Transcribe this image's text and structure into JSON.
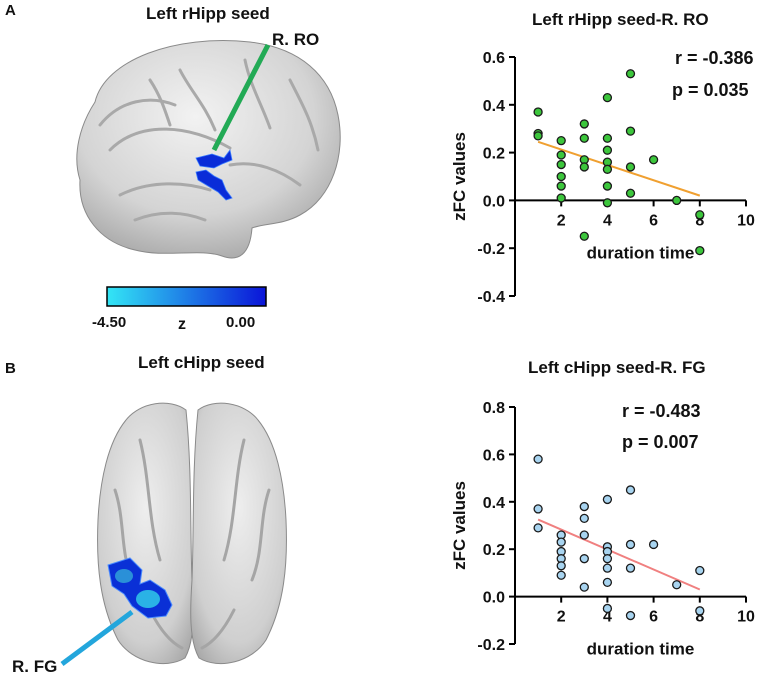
{
  "panels": [
    {
      "label": "A",
      "brain": {
        "title": "Left rHipp seed",
        "region_label": "R. RO",
        "leader_color": "#22aa55"
      },
      "colorbar": {
        "min_label": "-4.50",
        "max_label": "0.00",
        "label": "z",
        "color_low": "#33e6f5",
        "color_high": "#0a14d8"
      },
      "chart": {
        "title": "Left rHipp seed-R. RO",
        "r_text": "r = -0.386",
        "p_text": "p = 0.035"
      }
    },
    {
      "label": "B",
      "brain": {
        "title": "Left cHipp seed",
        "region_label": "R. FG",
        "leader_color": "#23a6dc"
      },
      "chart": {
        "title": "Left cHipp seed-R. FG",
        "r_text": "r = -0.483",
        "p_text": "p = 0.007"
      }
    }
  ],
  "chart_data": [
    {
      "type": "scatter",
      "title": "Left rHipp seed-R. RO",
      "xlabel": "duration time",
      "ylabel": "zFC values",
      "xlim": [
        0,
        10
      ],
      "ylim": [
        -0.4,
        0.6
      ],
      "xticks": [
        2,
        4,
        6,
        8,
        10
      ],
      "xtick_labels": [
        "2",
        "4",
        "6",
        "8",
        "10"
      ],
      "yticks": [
        -0.4,
        -0.2,
        0.0,
        0.2,
        0.4,
        0.6
      ],
      "ytick_labels": [
        "-0.4",
        "-0.2",
        "0.0",
        "0.2",
        "0.4",
        "0.6"
      ],
      "point_color": "#3cc63c",
      "line_color": "#f0a030",
      "fit_line": {
        "x": [
          1,
          8
        ],
        "y": [
          0.245,
          0.02
        ]
      },
      "points": [
        [
          1,
          0.37
        ],
        [
          1,
          0.28
        ],
        [
          1,
          0.27
        ],
        [
          2,
          0.25
        ],
        [
          2,
          0.19
        ],
        [
          2,
          0.15
        ],
        [
          2,
          0.1
        ],
        [
          2,
          0.06
        ],
        [
          2,
          0.01
        ],
        [
          3,
          0.32
        ],
        [
          3,
          0.26
        ],
        [
          3,
          0.17
        ],
        [
          3,
          0.14
        ],
        [
          3,
          -0.15
        ],
        [
          4,
          0.43
        ],
        [
          4,
          0.26
        ],
        [
          4,
          0.21
        ],
        [
          4,
          0.16
        ],
        [
          4,
          0.13
        ],
        [
          4,
          0.06
        ],
        [
          4,
          -0.01
        ],
        [
          5,
          0.53
        ],
        [
          5,
          0.29
        ],
        [
          5,
          0.14
        ],
        [
          5,
          0.03
        ],
        [
          6,
          0.17
        ],
        [
          7,
          0.0
        ],
        [
          8,
          -0.06
        ],
        [
          8,
          -0.21
        ]
      ]
    },
    {
      "type": "scatter",
      "title": "Left cHipp seed-R. FG",
      "xlabel": "duration time",
      "ylabel": "zFC values",
      "xlim": [
        0,
        10
      ],
      "ylim": [
        -0.2,
        0.8
      ],
      "xticks": [
        2,
        4,
        6,
        8,
        10
      ],
      "xtick_labels": [
        "2",
        "4",
        "6",
        "8",
        "10"
      ],
      "yticks": [
        -0.2,
        0.0,
        0.2,
        0.4,
        0.6,
        0.8
      ],
      "ytick_labels": [
        "-0.2",
        "0.0",
        "0.2",
        "0.4",
        "0.6",
        "0.8"
      ],
      "point_color": "#a8d4f0",
      "line_color": "#f08080",
      "fit_line": {
        "x": [
          1,
          8
        ],
        "y": [
          0.325,
          0.03
        ]
      },
      "points": [
        [
          1,
          0.58
        ],
        [
          1,
          0.37
        ],
        [
          1,
          0.29
        ],
        [
          2,
          0.26
        ],
        [
          2,
          0.23
        ],
        [
          2,
          0.19
        ],
        [
          2,
          0.16
        ],
        [
          2,
          0.13
        ],
        [
          2,
          0.09
        ],
        [
          3,
          0.38
        ],
        [
          3,
          0.33
        ],
        [
          3,
          0.26
        ],
        [
          3,
          0.16
        ],
        [
          3,
          0.04
        ],
        [
          4,
          0.41
        ],
        [
          4,
          0.21
        ],
        [
          4,
          0.19
        ],
        [
          4,
          0.16
        ],
        [
          4,
          0.12
        ],
        [
          4,
          0.06
        ],
        [
          4,
          -0.05
        ],
        [
          5,
          0.45
        ],
        [
          5,
          0.22
        ],
        [
          5,
          0.12
        ],
        [
          5,
          -0.08
        ],
        [
          6,
          0.22
        ],
        [
          7,
          0.05
        ],
        [
          8,
          0.11
        ],
        [
          8,
          -0.06
        ]
      ]
    }
  ]
}
